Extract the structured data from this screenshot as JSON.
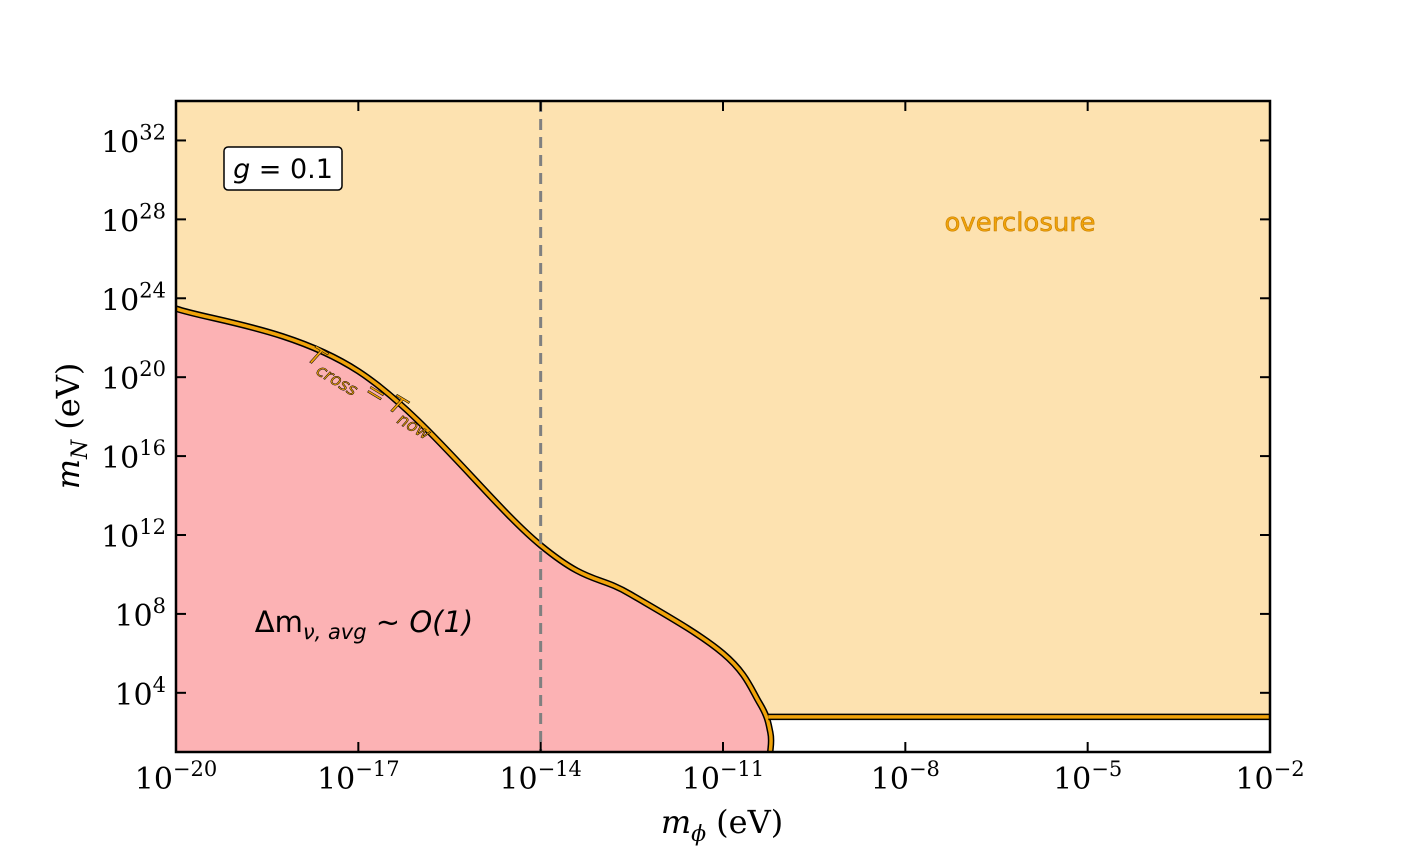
{
  "chart_data": {
    "type": "area",
    "title": "",
    "xlabel": "(eV)",
    "ylabel": "(eV)",
    "xlabel_symbol": "m",
    "xlabel_sub": "ϕ",
    "ylabel_symbol": "m",
    "ylabel_sub": "N",
    "xscale": "log",
    "yscale": "log",
    "xlim": [
      1e-20,
      0.01
    ],
    "ylim": [
      10,
      1e+34
    ],
    "x_ticks": [
      {
        "value": 1e-20,
        "base": "10",
        "exp": "−20"
      },
      {
        "value": 1e-17,
        "base": "10",
        "exp": "−17"
      },
      {
        "value": 1e-14,
        "base": "10",
        "exp": "−14"
      },
      {
        "value": 1e-11,
        "base": "10",
        "exp": "−11"
      },
      {
        "value": 1e-08,
        "base": "10",
        "exp": "−8"
      },
      {
        "value": 1e-05,
        "base": "10",
        "exp": "−5"
      },
      {
        "value": 0.01,
        "base": "10",
        "exp": "−2"
      }
    ],
    "y_ticks": [
      {
        "value": 10000.0,
        "base": "10",
        "exp": "4"
      },
      {
        "value": 100000000.0,
        "base": "10",
        "exp": "8"
      },
      {
        "value": 1000000000000.0,
        "base": "10",
        "exp": "12"
      },
      {
        "value": 1e+16,
        "base": "10",
        "exp": "16"
      },
      {
        "value": 1e+20,
        "base": "10",
        "exp": "20"
      },
      {
        "value": 1e+24,
        "base": "10",
        "exp": "24"
      },
      {
        "value": 1e+28,
        "base": "10",
        "exp": "28"
      },
      {
        "value": 1e+32,
        "base": "10",
        "exp": "32"
      }
    ],
    "boundary_curve": {
      "label": "T_cross = T_now",
      "label_main_1": "T",
      "label_sub_1": "cross",
      "label_eq": " = ",
      "label_main_2": "T",
      "label_sub_2": "now",
      "color": "#f0a30a",
      "edge_color": "#000000",
      "points": [
        {
          "x": 1e-20,
          "y": 3e+23
        },
        {
          "x": 1e-17,
          "y": 2e+20
        },
        {
          "x": 1e-14,
          "y": 300000000000.0
        },
        {
          "x": 3e-13,
          "y": 1000000000.0
        },
        {
          "x": 1e-11,
          "y": 1000000.0
        },
        {
          "x": 4e-11,
          "y": 3000.0
        },
        {
          "x": 6e-11,
          "y": 100.0
        },
        {
          "x": 6e-11,
          "y": 10
        }
      ]
    },
    "floor_curve": {
      "x_start": 6e-11,
      "x_end": 0.01,
      "y": 600
    },
    "vertical_line": {
      "x": 1e-14,
      "style": "dashed",
      "color": "#808080"
    },
    "regions": [
      {
        "name": "overclosure",
        "label": "overclosure",
        "color": "#fde2b0",
        "label_color": "#f0a30a"
      },
      {
        "name": "delta-m",
        "label_main": "Δm",
        "label_sub": "ν, avg",
        "label_rest": " ∼ O(1)",
        "color": "#fcb2b4"
      }
    ],
    "annotation_box": {
      "text_italic": "g",
      "text_rest": " = 0.1"
    },
    "legend": "none",
    "grid": false
  }
}
